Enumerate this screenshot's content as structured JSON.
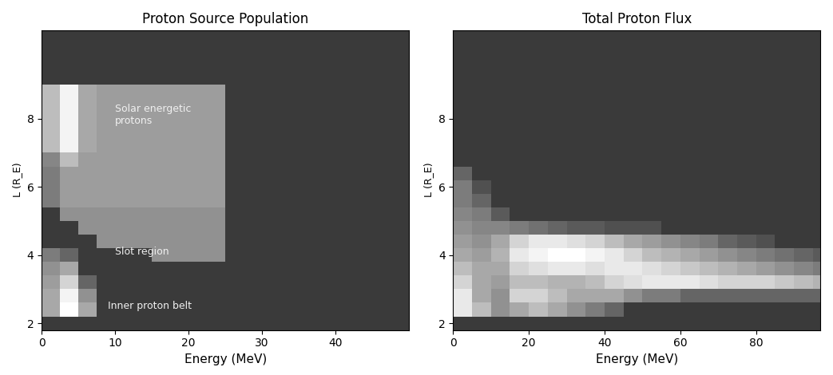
{
  "chart_data": [
    {
      "type": "heatmap",
      "title": "Proton Source Population",
      "x_label": "Energy (MeV)",
      "y_label": "L (R_E)",
      "xlim": [
        0,
        50
      ],
      "ylim": [
        1.8,
        10.6
      ],
      "xticks": [
        0,
        10,
        20,
        30,
        40
      ],
      "yticks": [
        2,
        4,
        6,
        8
      ],
      "x_edges": [
        0,
        2.5,
        5,
        7.5,
        10,
        12.5,
        15,
        17.5,
        20,
        22.5,
        25,
        27.5,
        30,
        32.5,
        35,
        37.5,
        40,
        42.5,
        45,
        47.5,
        50
      ],
      "y_edges": [
        2.2,
        2.6,
        3.0,
        3.4,
        3.8,
        4.2,
        4.6,
        5.0,
        5.4,
        5.8,
        6.2,
        6.6,
        7.0,
        7.4,
        7.8,
        8.2,
        8.6,
        9.0
      ],
      "cells": [
        [
          0.5,
          0.9,
          0.5,
          0,
          0,
          0,
          0,
          0,
          0,
          0,
          0,
          0,
          0,
          0,
          0,
          0,
          0,
          0,
          0,
          0
        ],
        [
          0.5,
          0.85,
          0.4,
          0,
          0,
          0,
          0,
          0,
          0,
          0,
          0,
          0,
          0,
          0,
          0,
          0,
          0,
          0,
          0,
          0
        ],
        [
          0.45,
          0.7,
          0.2,
          0,
          0,
          0,
          0,
          0,
          0,
          0,
          0,
          0,
          0,
          0,
          0,
          0,
          0,
          0,
          0,
          0
        ],
        [
          0.4,
          0.5,
          0,
          0,
          0,
          0,
          0,
          0,
          0,
          0,
          0,
          0,
          0,
          0,
          0,
          0,
          0,
          0,
          0,
          0
        ],
        [
          0.3,
          0.2,
          0,
          0,
          0,
          0,
          0.4,
          0.4,
          0.4,
          0.4,
          0,
          0,
          0,
          0,
          0,
          0,
          0,
          0,
          0,
          0
        ],
        [
          0,
          0,
          0,
          0.4,
          0.4,
          0.4,
          0.4,
          0.4,
          0.4,
          0.4,
          0,
          0,
          0,
          0,
          0,
          0,
          0,
          0,
          0,
          0
        ],
        [
          0,
          0,
          0.4,
          0.4,
          0.4,
          0.4,
          0.4,
          0.4,
          0.4,
          0.4,
          0,
          0,
          0,
          0,
          0,
          0,
          0,
          0,
          0,
          0
        ],
        [
          0,
          0.4,
          0.4,
          0.4,
          0.4,
          0.4,
          0.4,
          0.4,
          0.4,
          0.4,
          0,
          0,
          0,
          0,
          0,
          0,
          0,
          0,
          0,
          0
        ],
        [
          0.3,
          0.45,
          0.45,
          0.45,
          0.45,
          0.45,
          0.45,
          0.45,
          0.45,
          0.45,
          0,
          0,
          0,
          0,
          0,
          0,
          0,
          0,
          0,
          0
        ],
        [
          0.3,
          0.45,
          0.45,
          0.45,
          0.45,
          0.45,
          0.45,
          0.45,
          0.45,
          0.45,
          0,
          0,
          0,
          0,
          0,
          0,
          0,
          0,
          0,
          0
        ],
        [
          0.3,
          0.45,
          0.45,
          0.45,
          0.45,
          0.45,
          0.45,
          0.45,
          0.45,
          0.45,
          0,
          0,
          0,
          0,
          0,
          0,
          0,
          0,
          0,
          0
        ],
        [
          0.35,
          0.6,
          0.45,
          0.45,
          0.45,
          0.45,
          0.45,
          0.45,
          0.45,
          0.45,
          0,
          0,
          0,
          0,
          0,
          0,
          0,
          0,
          0,
          0
        ],
        [
          0.6,
          0.85,
          0.5,
          0.45,
          0.45,
          0.45,
          0.45,
          0.45,
          0.45,
          0.45,
          0,
          0,
          0,
          0,
          0,
          0,
          0,
          0,
          0,
          0
        ],
        [
          0.6,
          0.85,
          0.5,
          0.45,
          0.45,
          0.45,
          0.45,
          0.45,
          0.45,
          0.45,
          0,
          0,
          0,
          0,
          0,
          0,
          0,
          0,
          0,
          0
        ],
        [
          0.6,
          0.85,
          0.5,
          0.45,
          0.45,
          0.45,
          0.45,
          0.45,
          0.45,
          0.45,
          0,
          0,
          0,
          0,
          0,
          0,
          0,
          0,
          0,
          0
        ],
        [
          0.6,
          0.85,
          0.5,
          0.45,
          0.45,
          0.45,
          0.45,
          0.45,
          0.45,
          0.45,
          0,
          0,
          0,
          0,
          0,
          0,
          0,
          0,
          0,
          0
        ],
        [
          0.6,
          0.85,
          0.5,
          0.45,
          0.45,
          0.45,
          0.45,
          0.45,
          0.45,
          0.45,
          0,
          0,
          0,
          0,
          0,
          0,
          0,
          0,
          0,
          0
        ]
      ],
      "annotations": [
        {
          "text": "Solar energetic\nprotons",
          "x": 10,
          "y": 8.1
        },
        {
          "text": "Slot region",
          "x": 10,
          "y": 4.1
        },
        {
          "text": "Inner proton belt",
          "x": 9,
          "y": 2.5
        }
      ]
    },
    {
      "type": "heatmap",
      "title": "Total Proton Flux",
      "x_label": "Energy (MeV)",
      "y_label": "L (R_E)",
      "xlim": [
        0,
        97
      ],
      "ylim": [
        1.8,
        10.6
      ],
      "xticks": [
        0,
        20,
        40,
        60,
        80
      ],
      "yticks": [
        2,
        4,
        6,
        8
      ],
      "x_edges": [
        0,
        5,
        10,
        15,
        20,
        25,
        30,
        35,
        40,
        45,
        50,
        55,
        60,
        65,
        70,
        75,
        80,
        85,
        90,
        95,
        100
      ],
      "y_edges": [
        2.2,
        2.6,
        3.0,
        3.4,
        3.8,
        4.2,
        4.6,
        5.0,
        5.4,
        5.8,
        6.2,
        6.6,
        7.0,
        7.4,
        7.8,
        8.2,
        8.6,
        9.0
      ],
      "cells": [
        [
          0.8,
          0.6,
          0.4,
          0.5,
          0.6,
          0.5,
          0.4,
          0.3,
          0.2,
          0,
          0,
          0,
          0,
          0,
          0,
          0,
          0,
          0,
          0,
          0
        ],
        [
          0.8,
          0.5,
          0.4,
          0.7,
          0.7,
          0.6,
          0.5,
          0.5,
          0.5,
          0.4,
          0.3,
          0.3,
          0.2,
          0.2,
          0.2,
          0.2,
          0.2,
          0.2,
          0.2,
          0.2
        ],
        [
          0.7,
          0.5,
          0.45,
          0.6,
          0.6,
          0.55,
          0.55,
          0.6,
          0.7,
          0.75,
          0.8,
          0.8,
          0.8,
          0.75,
          0.7,
          0.7,
          0.7,
          0.65,
          0.6,
          0.55
        ],
        [
          0.6,
          0.5,
          0.5,
          0.7,
          0.75,
          0.8,
          0.8,
          0.75,
          0.8,
          0.8,
          0.75,
          0.7,
          0.65,
          0.6,
          0.55,
          0.5,
          0.45,
          0.4,
          0.35,
          0.3
        ],
        [
          0.5,
          0.45,
          0.55,
          0.8,
          0.85,
          0.9,
          0.9,
          0.85,
          0.8,
          0.7,
          0.6,
          0.55,
          0.5,
          0.45,
          0.4,
          0.35,
          0.3,
          0.25,
          0.2,
          0.15
        ],
        [
          0.45,
          0.4,
          0.5,
          0.7,
          0.8,
          0.8,
          0.75,
          0.7,
          0.6,
          0.5,
          0.45,
          0.4,
          0.35,
          0.3,
          0.2,
          0.15,
          0.1,
          0,
          0,
          0
        ],
        [
          0.4,
          0.35,
          0.35,
          0.3,
          0.25,
          0.2,
          0.15,
          0.15,
          0.1,
          0.1,
          0.1,
          0,
          0,
          0,
          0,
          0,
          0,
          0,
          0,
          0
        ],
        [
          0.35,
          0.3,
          0.15,
          0,
          0,
          0,
          0,
          0,
          0,
          0,
          0,
          0,
          0,
          0,
          0,
          0,
          0,
          0,
          0,
          0
        ],
        [
          0.3,
          0.2,
          0,
          0,
          0,
          0,
          0,
          0,
          0,
          0,
          0,
          0,
          0,
          0,
          0,
          0,
          0,
          0,
          0,
          0
        ],
        [
          0.3,
          0.1,
          0,
          0,
          0,
          0,
          0,
          0,
          0,
          0,
          0,
          0,
          0,
          0,
          0,
          0,
          0,
          0,
          0,
          0
        ],
        [
          0.2,
          0,
          0,
          0,
          0,
          0,
          0,
          0,
          0,
          0,
          0,
          0,
          0,
          0,
          0,
          0,
          0,
          0,
          0,
          0
        ],
        [
          0,
          0,
          0,
          0,
          0,
          0,
          0,
          0,
          0,
          0,
          0,
          0,
          0,
          0,
          0,
          0,
          0,
          0,
          0,
          0
        ],
        [
          0,
          0,
          0,
          0,
          0,
          0,
          0,
          0,
          0,
          0,
          0,
          0,
          0,
          0,
          0,
          0,
          0,
          0,
          0,
          0
        ],
        [
          0,
          0,
          0,
          0,
          0,
          0,
          0,
          0,
          0,
          0,
          0,
          0,
          0,
          0,
          0,
          0,
          0,
          0,
          0,
          0
        ],
        [
          0,
          0,
          0,
          0,
          0,
          0,
          0,
          0,
          0,
          0,
          0,
          0,
          0,
          0,
          0,
          0,
          0,
          0,
          0,
          0
        ],
        [
          0,
          0,
          0,
          0,
          0,
          0,
          0,
          0,
          0,
          0,
          0,
          0,
          0,
          0,
          0,
          0,
          0,
          0,
          0,
          0
        ],
        [
          0,
          0,
          0,
          0,
          0,
          0,
          0,
          0,
          0,
          0,
          0,
          0,
          0,
          0,
          0,
          0,
          0,
          0,
          0,
          0
        ]
      ]
    }
  ]
}
